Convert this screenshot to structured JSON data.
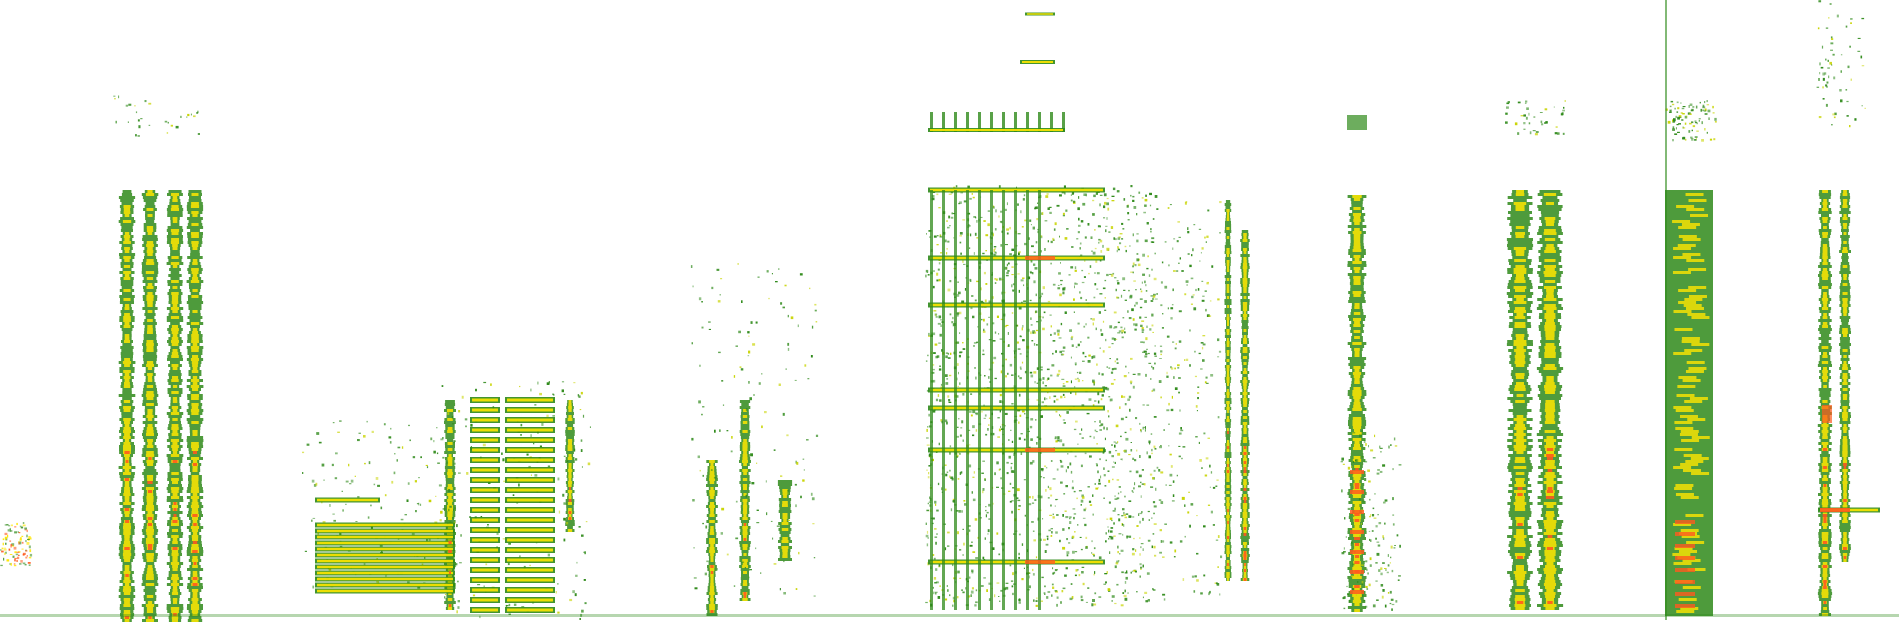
{
  "image": {
    "kind": "spectrogram",
    "background": "#ffffff",
    "colors": {
      "low": "#2f8a1a",
      "mid": "#c8d400",
      "high": "#ffe600",
      "peak": "#ff5a1e"
    }
  }
}
